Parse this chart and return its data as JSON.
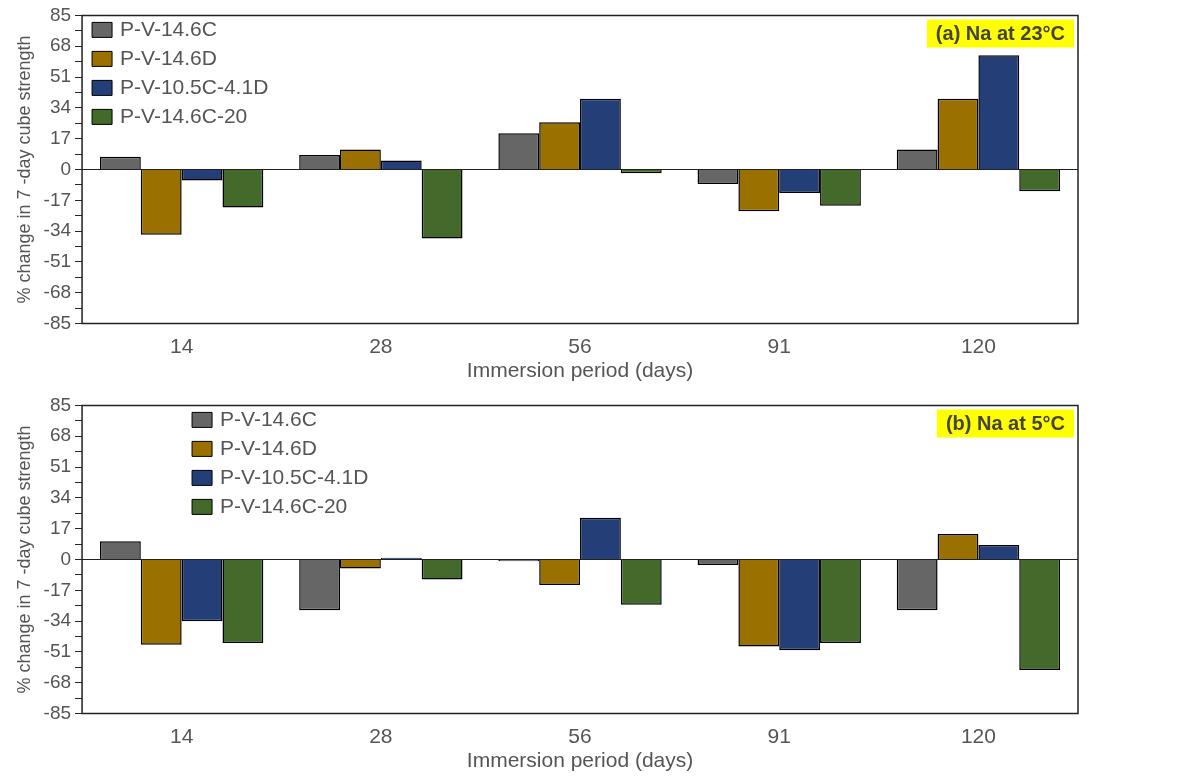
{
  "chart_data": [
    {
      "type": "bar",
      "annotations": [
        "(a) Na at 23°C"
      ],
      "xlabel": "Immersion period (days)",
      "ylabel": "% change in 7 -day cube strength",
      "categories": [
        "14",
        "28",
        "56",
        "91",
        "120"
      ],
      "series": [
        {
          "name": "P-V-14.6C",
          "color": "#666666",
          "values": [
            7,
            8,
            20,
            -8,
            11
          ]
        },
        {
          "name": "P-V-14.6D",
          "color": "#9a7100",
          "values": [
            -36,
            11,
            26,
            -23,
            39
          ]
        },
        {
          "name": "P-V-10.5C-4.1D",
          "color": "#243f78",
          "values": [
            -6,
            5,
            39,
            -13,
            63
          ]
        },
        {
          "name": "P-V-14.6C-20",
          "color": "#436a2b",
          "values": [
            -21,
            -38,
            -2,
            -20,
            -12
          ]
        }
      ],
      "ylim": [
        -85,
        85
      ],
      "yticks": [
        -85,
        {
          "value": -76.5,
          "label": null
        },
        -68,
        {
          "value": -59.5,
          "label": null
        },
        -51,
        {
          "value": -42.5,
          "label": null
        },
        -34,
        {
          "value": -25.5,
          "label": null
        },
        -17,
        {
          "value": -8.5,
          "label": null
        },
        0,
        {
          "value": 8.5,
          "label": null
        },
        17,
        {
          "value": 25.5,
          "label": null
        },
        34,
        {
          "value": 42.5,
          "label": null
        },
        51,
        {
          "value": 59.5,
          "label": null
        },
        68,
        {
          "value": 76.5,
          "label": null
        },
        85
      ],
      "legend": "top left"
    },
    {
      "type": "bar",
      "annotations": [
        "(b) Na at 5°C"
      ],
      "xlabel": "Immersion period (days)",
      "ylabel": "% change in 7 -day cube strength",
      "categories": [
        "14",
        "28",
        "56",
        "91",
        "120"
      ],
      "series": [
        {
          "name": "P-V-14.6C",
          "color": "#666666",
          "values": [
            10,
            -28,
            -1,
            -3,
            -28
          ]
        },
        {
          "name": "P-V-14.6D",
          "color": "#9a7100",
          "values": [
            -47,
            -5,
            -14,
            -48,
            14
          ]
        },
        {
          "name": "P-V-10.5C-4.1D",
          "color": "#243f78",
          "values": [
            -34,
            1,
            23,
            -50,
            8
          ]
        },
        {
          "name": "P-V-14.6C-20",
          "color": "#436a2b",
          "values": [
            -46,
            -11,
            -25,
            -46,
            -61
          ]
        }
      ],
      "ylim": [
        -85,
        85
      ],
      "yticks": [
        -85,
        {
          "value": -76.5,
          "label": null
        },
        -68,
        {
          "value": -59.5,
          "label": null
        },
        -51,
        {
          "value": -42.5,
          "label": null
        },
        -34,
        {
          "value": -25.5,
          "label": null
        },
        -17,
        {
          "value": -8.5,
          "label": null
        },
        0,
        {
          "value": 8.5,
          "label": null
        },
        17,
        {
          "value": 25.5,
          "label": null
        },
        34,
        {
          "value": 42.5,
          "label": null
        },
        51,
        {
          "value": 59.5,
          "label": null
        },
        68,
        {
          "value": 76.5,
          "label": null
        },
        85
      ],
      "legend": "top left"
    }
  ]
}
